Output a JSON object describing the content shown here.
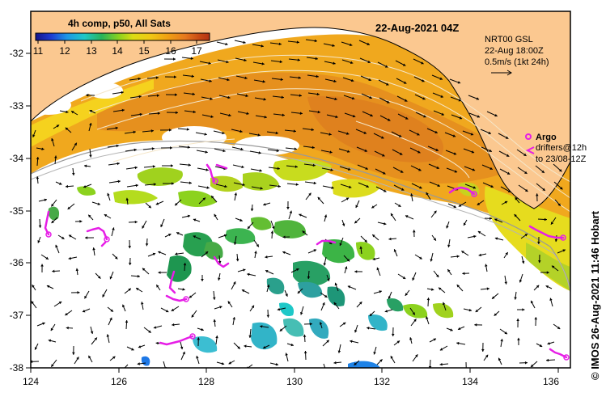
{
  "title": "22-Aug-2021 04Z",
  "colorbar": {
    "title": "4h comp, p50, All Sats",
    "ticks": [
      "11",
      "12",
      "13",
      "14",
      "15",
      "16",
      "17"
    ],
    "range": [
      11,
      17.5
    ],
    "colors": [
      "#14148c",
      "#1e3cd2",
      "#1e96e6",
      "#1ec8c8",
      "#28b45a",
      "#8cd21e",
      "#dcdc14",
      "#f0c814",
      "#f0a014",
      "#e6781e",
      "#c84a14",
      "#b43214"
    ]
  },
  "legend": {
    "model": "NRT00 GSL",
    "time": "22-Aug 18:00Z",
    "scale": "0.5m/s (1kt 24h)",
    "argo_label": "Argo",
    "drifters_line1": "drifters@12h",
    "drifters_line2": "to 23/08-12Z"
  },
  "axes": {
    "x_ticks": [
      "124",
      "126",
      "128",
      "130",
      "132",
      "134",
      "136"
    ],
    "y_ticks": [
      "-32",
      "-33",
      "-34",
      "-35",
      "-36",
      "-37",
      "-38"
    ]
  },
  "credit": "© IMOS 26-Aug-2021 11:46 Hobart",
  "colors": {
    "land": "#fbc890",
    "ocean": "#ffffff",
    "warm_core": "#e6901e",
    "argo": "#e61ee6"
  }
}
